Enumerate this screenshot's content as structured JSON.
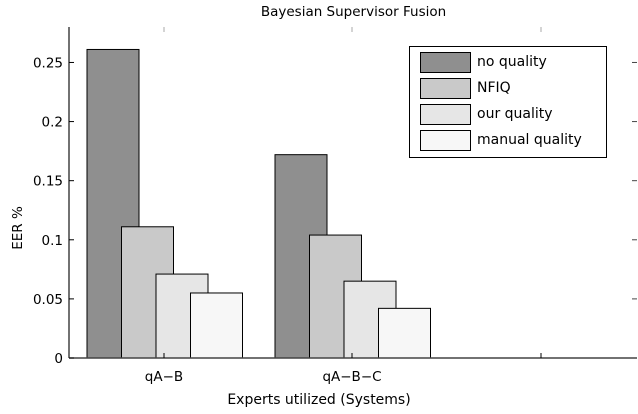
{
  "chart_data": {
    "type": "bar",
    "title": "Bayesian Supervisor Fusion",
    "xlabel": "Experts utilized (Systems)",
    "ylabel": "EER %",
    "ylim": [
      0,
      0.28
    ],
    "yticks": [
      "0",
      "0.05",
      "0.1",
      "0.15",
      "0.2",
      "0.25"
    ],
    "categories": [
      "qA−B",
      "qA−B−C"
    ],
    "series": [
      {
        "name": "no quality",
        "color": "#8f8f8f",
        "values": [
          0.261,
          0.172
        ]
      },
      {
        "name": "NFIQ",
        "color": "#c9c9c9",
        "values": [
          0.111,
          0.104
        ]
      },
      {
        "name": "our quality",
        "color": "#e6e6e6",
        "values": [
          0.071,
          0.065
        ]
      },
      {
        "name": "manual quality",
        "color": "#f7f7f7",
        "values": [
          0.055,
          0.042
        ]
      }
    ],
    "legend_position": "upper right",
    "grid": false
  },
  "title": "Bayesian Supervisor Fusion",
  "xlabel": "Experts utilized (Systems)",
  "ylabel": "EER %",
  "legend": [
    {
      "label": "no quality",
      "color": "#8f8f8f"
    },
    {
      "label": "NFIQ",
      "color": "#c9c9c9"
    },
    {
      "label": "our quality",
      "color": "#e6e6e6"
    },
    {
      "label": "manual quality",
      "color": "#f7f7f7"
    }
  ]
}
